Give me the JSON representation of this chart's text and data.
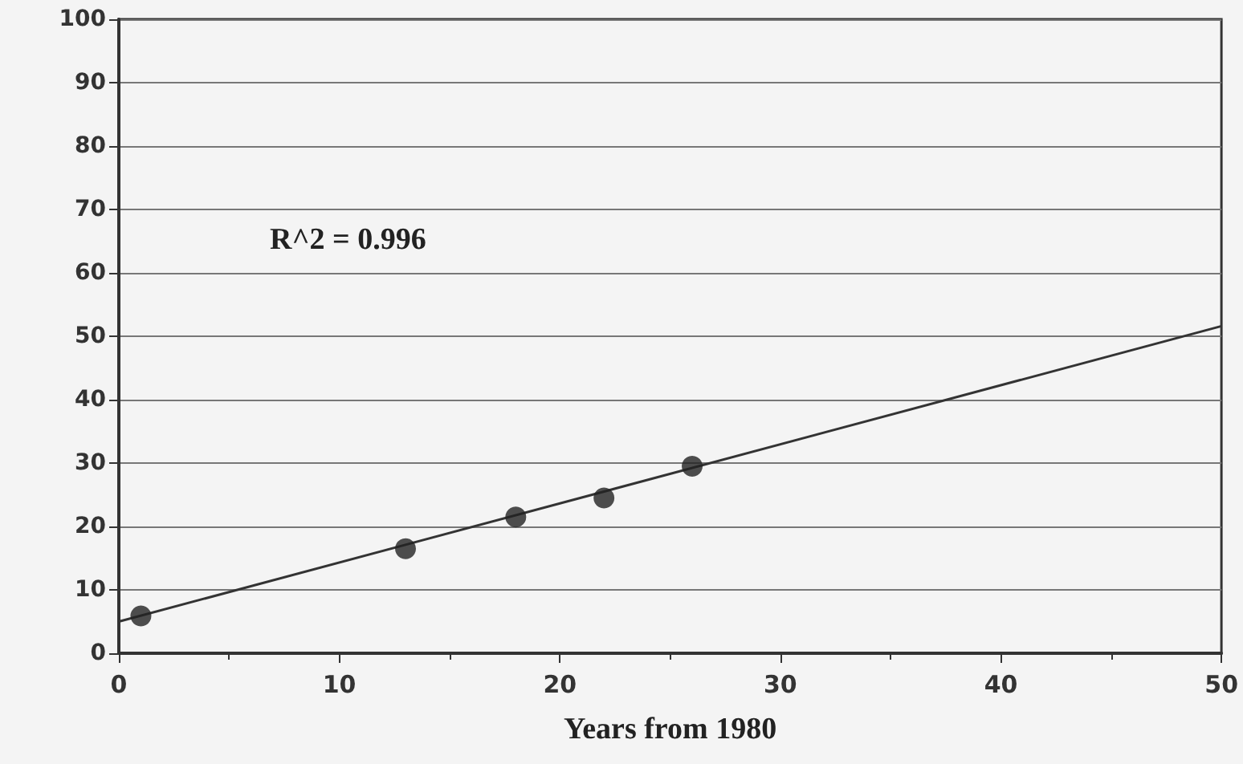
{
  "chart_data": {
    "type": "scatter",
    "xlabel": "Years from 1980",
    "annotations": [
      "R^2 = 0.996"
    ],
    "series": [
      {
        "color": "#222222",
        "x": [
          1,
          13,
          18,
          22,
          26
        ],
        "values": [
          5.9,
          16.5,
          21.5,
          24.5,
          29.5
        ],
        "marker": "circle"
      },
      {
        "type": "line",
        "color": "#333333",
        "x": [
          0,
          50
        ],
        "values": [
          5,
          51.6
        ],
        "marker": "none",
        "line_style": "solid"
      }
    ],
    "xlim": [
      0,
      50
    ],
    "xticks": [
      0,
      10,
      20,
      30,
      40,
      50
    ],
    "ylim": [
      0,
      100
    ],
    "yticks": [
      0,
      10,
      20,
      30,
      40,
      50,
      60,
      70,
      80,
      90,
      100
    ],
    "grid": "y"
  }
}
